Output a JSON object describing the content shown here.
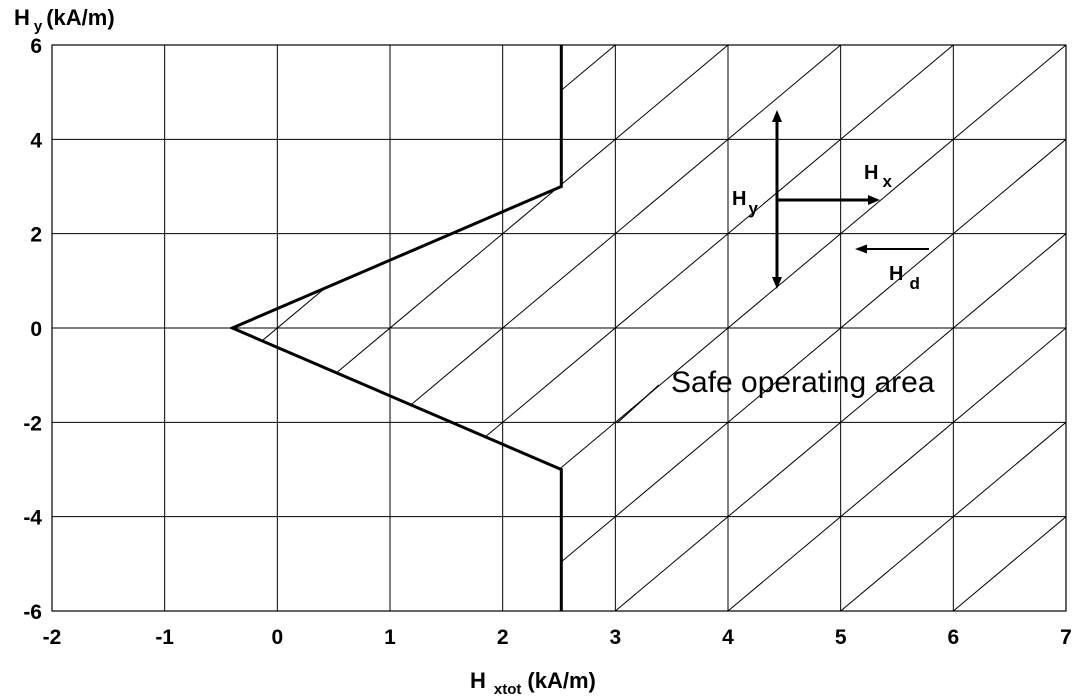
{
  "chart_data": {
    "type": "line",
    "xlabel": {
      "main": "H",
      "sub": "xtot",
      "unit": "(kA/m)"
    },
    "ylabel": {
      "main": "H",
      "sub": "y",
      "unit": "(kA/m)"
    },
    "xlim": [
      -2,
      7
    ],
    "ylim": [
      -6,
      6
    ],
    "xticks": [
      "-2",
      "-1",
      "0",
      "1",
      "2",
      "3",
      "4",
      "5",
      "6",
      "7"
    ],
    "yticks": [
      "6",
      "4",
      "2",
      "0",
      "-2",
      "-4",
      "-6"
    ],
    "grid": true,
    "series": [
      {
        "x": [
          2.52,
          2.52,
          -0.4,
          2.52,
          2.52
        ],
        "y": [
          6,
          3.0,
          0,
          -3.0,
          -6
        ]
      }
    ],
    "shaded_region": "right of boundary (diagonal hatch)",
    "annotation": {
      "text": "Safe operating area"
    },
    "inset_vectors": {
      "hy": {
        "main": "H",
        "sub": "y"
      },
      "hx": {
        "main": "H",
        "sub": "x"
      },
      "hd": {
        "main": "H",
        "sub": "d"
      }
    }
  }
}
